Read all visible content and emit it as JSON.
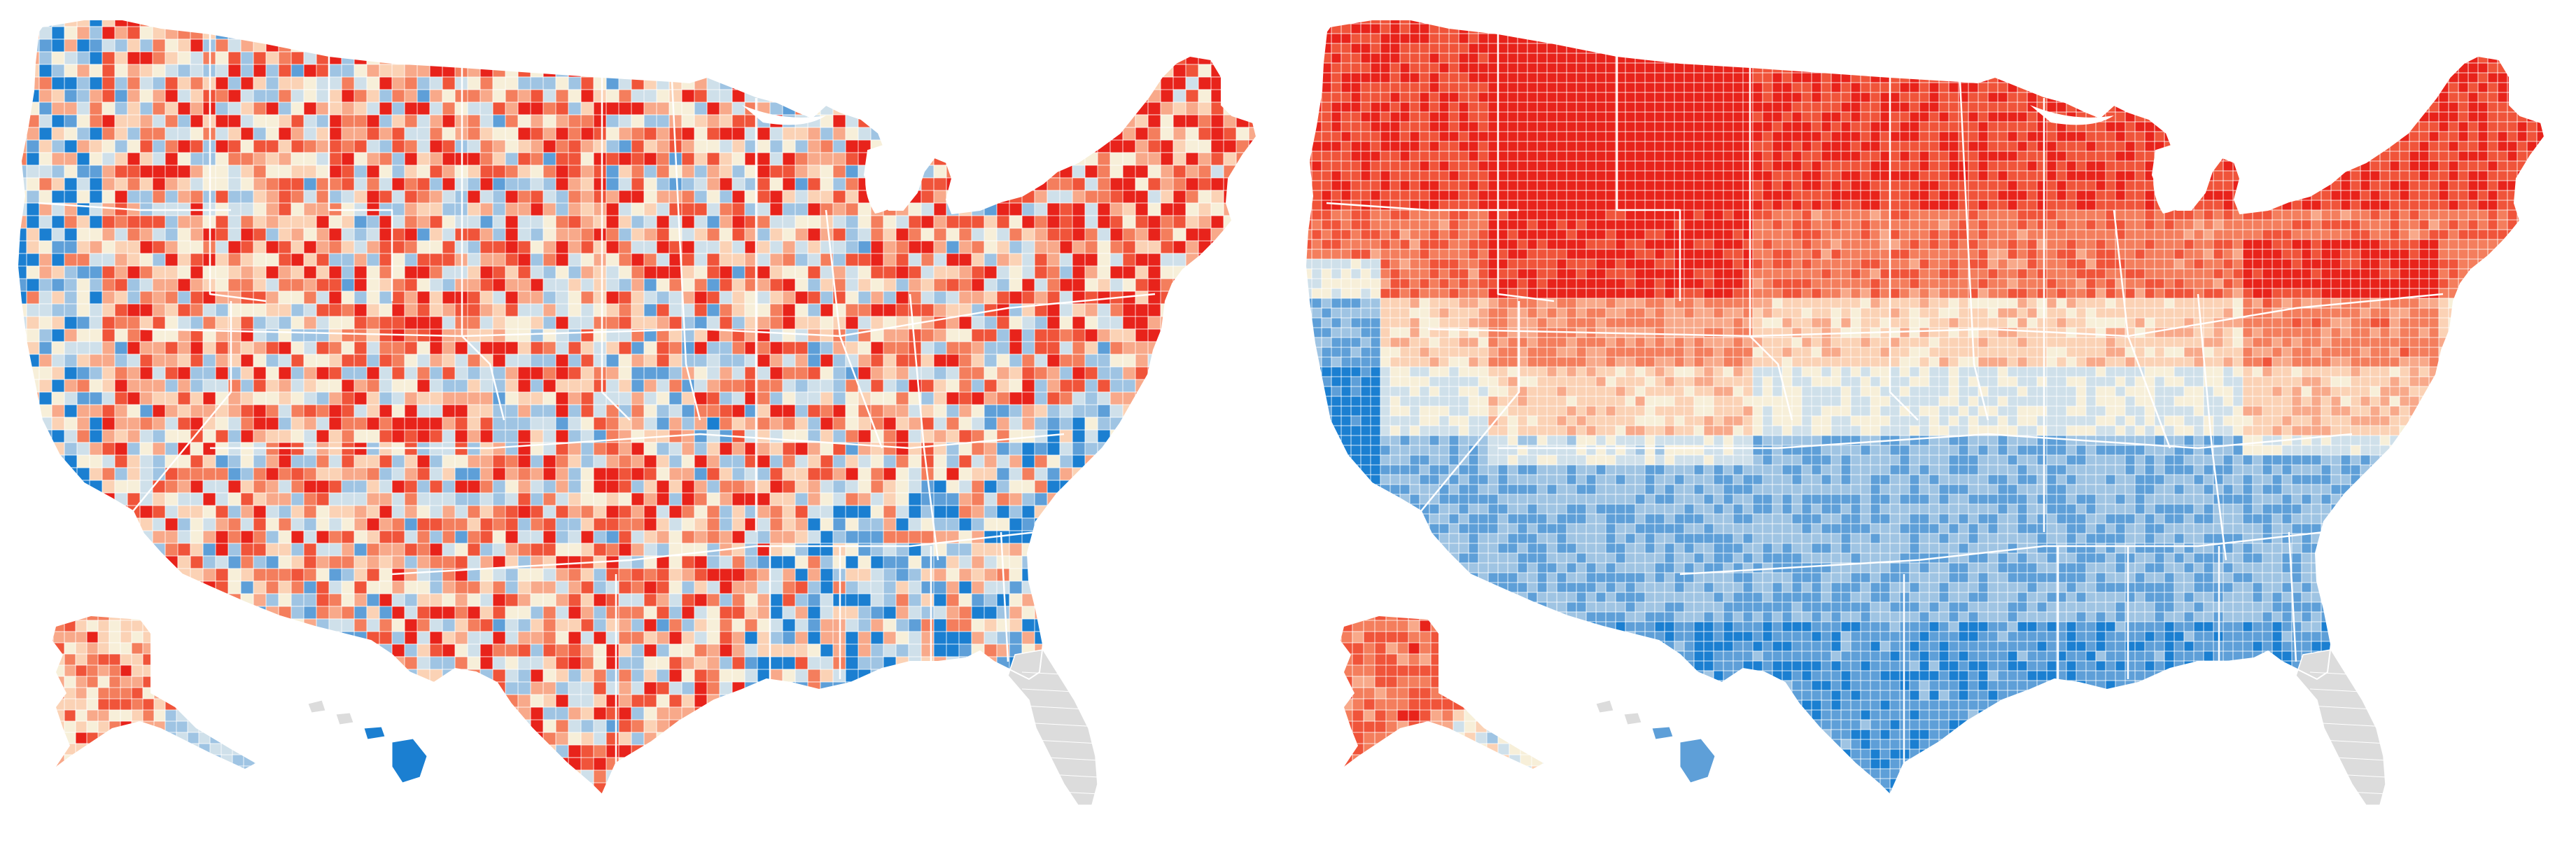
{
  "maps": [
    {
      "id": "left",
      "region_names": [
        "contiguous-us",
        "alaska",
        "hawaii",
        "florida"
      ],
      "pattern": "county-mosaic"
    },
    {
      "id": "right",
      "region_names": [
        "contiguous-us",
        "alaska",
        "hawaii",
        "florida"
      ],
      "pattern": "latitude-gradient"
    }
  ],
  "palette": {
    "red_dark": "#e8231b",
    "red": "#f0543a",
    "red_mid": "#f47e5d",
    "salmon": "#f8a98a",
    "peach": "#fbd2b5",
    "cream": "#f7efd9",
    "light_blue": "#cfe0ea",
    "sky": "#9fc4e3",
    "blue": "#5e9fd8",
    "blue_dark": "#1b7fd1",
    "no_data": "#dcdcdc",
    "border": "#ffffff"
  }
}
